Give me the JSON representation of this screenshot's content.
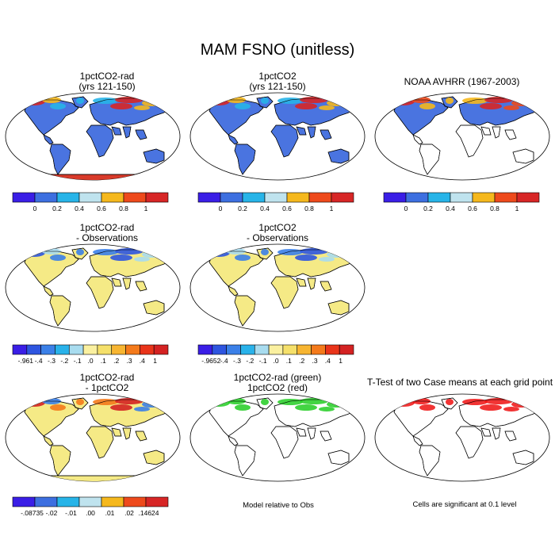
{
  "figure": {
    "title": "MAM FSNO (unitless)"
  },
  "palette": {
    "field6": [
      "#3a1ee6",
      "#3d6fe0",
      "#27b4e8",
      "#bfe3ee",
      "#f5b81d",
      "#ee4a1c",
      "#d72626"
    ],
    "diff11": [
      "#3a1ee6",
      "#2e55e0",
      "#3b80e8",
      "#29b2ea",
      "#a8dcef",
      "#faf0a0",
      "#f5e06a",
      "#f7b531",
      "#f47a1b",
      "#e9341a",
      "#d42222"
    ],
    "land_base": "#4a74e0",
    "ocean": "#ffffff",
    "yellow": "#f5ea86",
    "green": "#22cc22",
    "red": "#ee1111"
  },
  "panels": [
    {
      "id": "p1",
      "title1": "1pctCO2-rad",
      "title2": "(yrs 121-150)",
      "kind": "field-model",
      "antarctica": true
    },
    {
      "id": "p2",
      "title1": "1pctCO2",
      "title2": "(yrs 121-150)",
      "kind": "field-model",
      "antarctica": false
    },
    {
      "id": "p3",
      "title1": "NOAA AVHRR (1967-2003)",
      "title2": "",
      "kind": "field-obs",
      "antarctica": false
    },
    {
      "id": "p4",
      "title1": "1pctCO2-rad",
      "title2": "- Observations",
      "kind": "diff",
      "antarctica": false
    },
    {
      "id": "p5",
      "title1": "1pctCO2",
      "title2": "- Observations",
      "kind": "diff",
      "antarctica": false
    },
    {
      "id": "p7",
      "title1": "1pctCO2-rad",
      "title2": "- 1pctCO2",
      "kind": "diff2",
      "antarctica": true
    },
    {
      "id": "p8",
      "title1": "1pctCO2-rad (green)",
      "title2": "1pctCO2 (red)",
      "kind": "compare",
      "antarctica": false
    },
    {
      "id": "p9",
      "title1": "T-Test of two Case means at each grid point",
      "title2": "",
      "kind": "ttest",
      "antarctica": false
    }
  ],
  "colorbars": [
    {
      "id": "cb1",
      "labels": [
        "0",
        "0.2",
        "0.4",
        "0.6",
        "0.8",
        "1"
      ],
      "palette": "field6"
    },
    {
      "id": "cb2",
      "labels": [
        "0",
        "0.2",
        "0.4",
        "0.6",
        "0.8",
        "1"
      ],
      "palette": "field6"
    },
    {
      "id": "cb3",
      "labels": [
        "0",
        "0.2",
        "0.4",
        "0.6",
        "0.8",
        "1"
      ],
      "palette": "field6"
    },
    {
      "id": "cb4",
      "labels": [
        "-.961",
        "-.4",
        "-.3",
        "-.2",
        "-.1",
        ".0",
        ".1",
        ".2",
        ".3",
        ".4",
        "1"
      ],
      "palette": "diff11"
    },
    {
      "id": "cb5",
      "labels": [
        "-.9652",
        "-.4",
        "-.3",
        "-.2",
        "-.1",
        ".0",
        ".1",
        ".2",
        ".3",
        ".4",
        "1"
      ],
      "palette": "diff11"
    },
    {
      "id": "cb7",
      "labels": [
        "-.08735",
        "-.02",
        "-.01",
        ".00",
        ".01",
        ".02",
        ".14624"
      ],
      "palette": "field6"
    }
  ],
  "notes": {
    "model_relative": "Model relative to Obs",
    "significance": "Cells are significant at 0.1 level"
  }
}
